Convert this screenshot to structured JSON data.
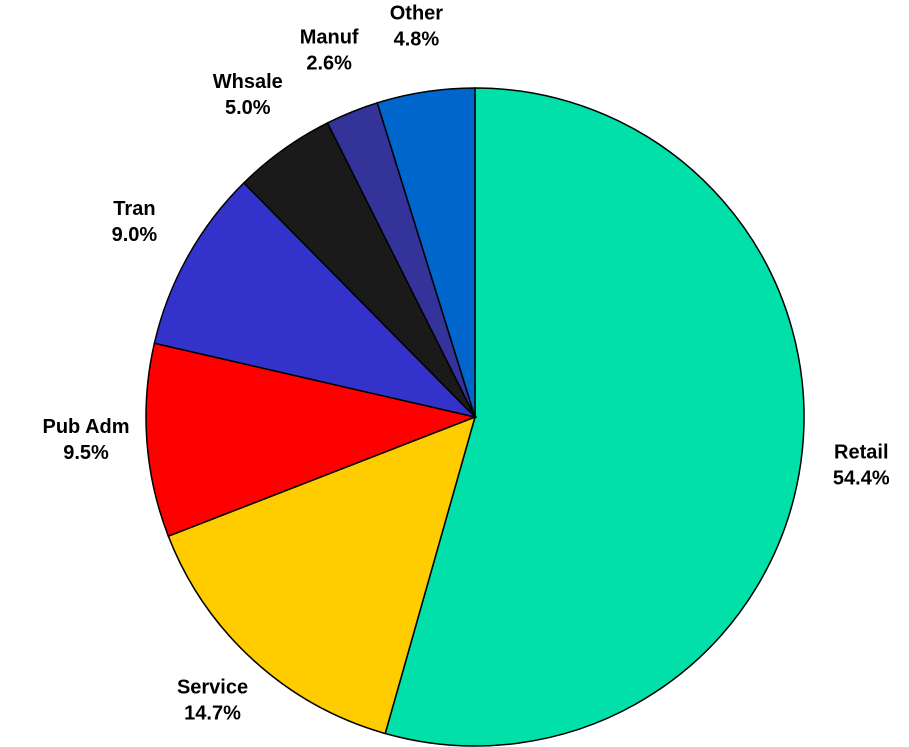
{
  "chart_data": {
    "type": "pie",
    "categories": [
      "Retail",
      "Service",
      "Pub Adm",
      "Tran",
      "Whsale",
      "Manuf",
      "Other"
    ],
    "values": [
      54.4,
      14.7,
      9.5,
      9.0,
      5.0,
      2.6,
      4.8
    ],
    "value_labels": [
      "54.4%",
      "14.7%",
      "9.5%",
      "9.0%",
      "5.0%",
      "2.6%",
      "4.8%"
    ],
    "colors": [
      "#00e0a8",
      "#ffcc00",
      "#ff0000",
      "#3333cc",
      "#1a1a1a",
      "#333399",
      "#0066cc"
    ]
  }
}
